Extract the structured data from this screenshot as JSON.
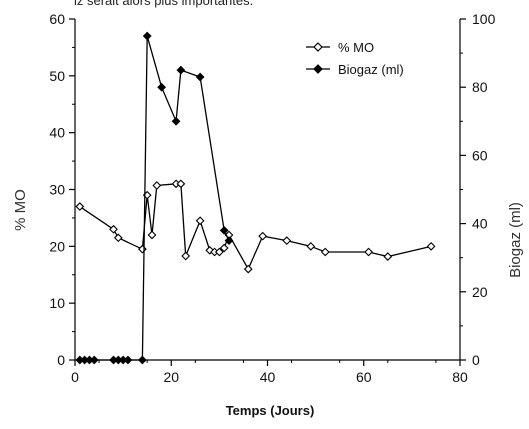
{
  "caption": "iz serait alors plus importantes.",
  "chart_data": {
    "type": "line",
    "xlabel": "Temps (Jours)",
    "ylabel_left": "% MO",
    "ylabel_right": "Biogaz (ml)",
    "xlim": [
      0,
      80
    ],
    "ylim_left": [
      0,
      60
    ],
    "ylim_right": [
      0,
      100
    ],
    "x_ticks": [
      "0",
      "20",
      "40",
      "60",
      "80"
    ],
    "y_left_ticks": [
      "0",
      "10",
      "20",
      "30",
      "40",
      "50",
      "60"
    ],
    "y_right_ticks": [
      "0",
      "20",
      "40",
      "60",
      "80",
      "100"
    ],
    "grid": false,
    "legend_position": "top-right",
    "series": [
      {
        "name": "% MO",
        "axis": "left",
        "marker": "open-diamond",
        "color": "#000000",
        "x": [
          1,
          8,
          9,
          14,
          15,
          16,
          17,
          21,
          22,
          23,
          26,
          28,
          29,
          30,
          31,
          32,
          36,
          39,
          44,
          49,
          52,
          61,
          65,
          74
        ],
        "y": [
          27,
          23,
          21.5,
          19.5,
          29,
          22,
          30.7,
          31,
          31,
          18.3,
          24.5,
          19.3,
          19,
          19,
          19.7,
          22,
          16,
          21.8,
          21,
          20,
          19,
          19,
          18.2,
          20
        ]
      },
      {
        "name": "Biogaz (ml)",
        "axis": "right",
        "marker": "filled-diamond",
        "color": "#000000",
        "x": [
          1,
          2,
          3,
          4,
          8,
          9,
          10,
          11,
          14,
          15,
          18,
          21,
          22,
          26,
          31,
          32
        ],
        "y": [
          0,
          0,
          0,
          0,
          0,
          0,
          0,
          0,
          0,
          95,
          80,
          70,
          85,
          83,
          38,
          35
        ]
      }
    ]
  }
}
